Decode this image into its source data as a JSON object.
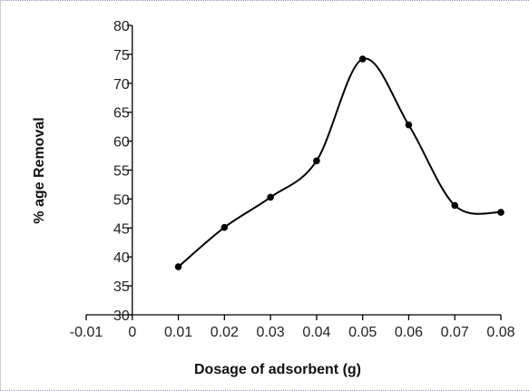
{
  "chart_data": {
    "type": "line",
    "title": "",
    "xlabel": "Dosage of adsorbent (g)",
    "ylabel": "% age Removal",
    "xlim": [
      -0.01,
      0.08
    ],
    "ylim": [
      30,
      80
    ],
    "xticks": [
      -0.01,
      0,
      0.01,
      0.02,
      0.03,
      0.04,
      0.05,
      0.06,
      0.07,
      0.08
    ],
    "xtick_labels": [
      "-0.01",
      "0",
      "0.01",
      "0.02",
      "0.03",
      "0.04",
      "0.05",
      "0.06",
      "0.07",
      "0.08"
    ],
    "yticks": [
      30,
      35,
      40,
      45,
      50,
      55,
      60,
      65,
      70,
      75,
      80
    ],
    "ytick_labels": [
      "30",
      "35",
      "40",
      "45",
      "50",
      "55",
      "60",
      "65",
      "70",
      "75",
      "80"
    ],
    "grid": false,
    "legend": "none",
    "smooth": true,
    "series": [
      {
        "color": "#000000",
        "x": [
          0.01,
          0.02,
          0.03,
          0.04,
          0.05,
          0.06,
          0.07,
          0.08
        ],
        "y": [
          38.3,
          45.1,
          50.3,
          56.6,
          74.2,
          62.8,
          48.9,
          47.7
        ]
      }
    ]
  }
}
